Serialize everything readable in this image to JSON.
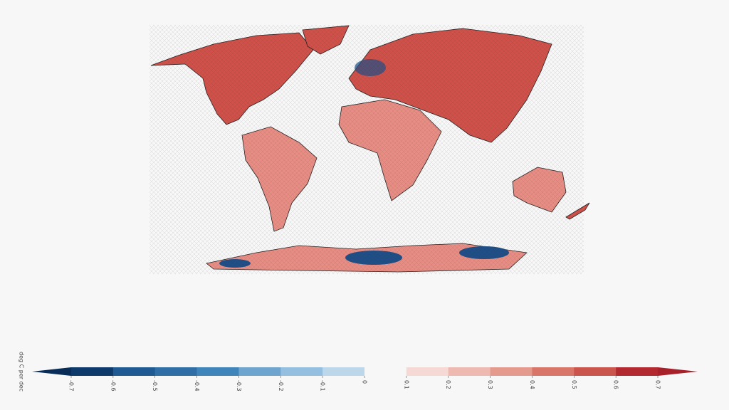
{
  "map": {
    "colorbar": {
      "label": "deg C per dec",
      "lim": [
        -0.7,
        0.7
      ],
      "ticks": [
        -0.7,
        -0.6,
        -0.5,
        -0.4,
        -0.3,
        -0.2,
        -0.1,
        0,
        0.1,
        0.2,
        0.3,
        0.4,
        0.5,
        0.6,
        0.7
      ],
      "colors": [
        "#0d3a6b",
        "#1f5a92",
        "#2f6fa6",
        "#3f85ba",
        "#6da5cf",
        "#94bfdf",
        "#bcd6ea",
        "#f7f7f7",
        "#f6d9d4",
        "#eeb9b0",
        "#e49a8c",
        "#d9766a",
        "#c9554d",
        "#b22a30"
      ],
      "extend_colors": [
        "#082d59",
        "#a8202a"
      ]
    }
  }
}
